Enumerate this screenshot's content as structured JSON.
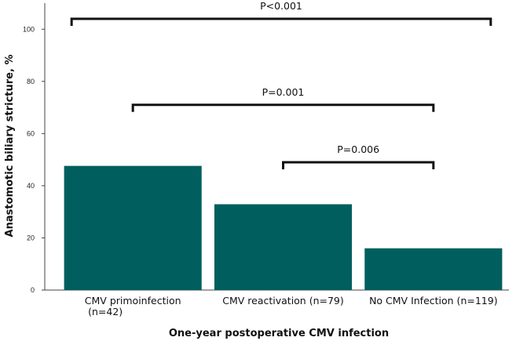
{
  "chart_data": {
    "type": "bar",
    "categories": [
      [
        "CMV primoinfection",
        "(n=42)"
      ],
      [
        "CMV reactivation (n=79)"
      ],
      [
        "No CMV Infection (n=119)"
      ]
    ],
    "values": [
      47.6,
      32.9,
      16.0
    ],
    "xlabel": "One-year postoperative CMV infection",
    "ylabel": "Anastomotic biliary stricture, %",
    "ylim": [
      0,
      110
    ],
    "yticks": [
      0,
      20,
      40,
      60,
      80,
      100
    ],
    "bar_color": "#005f5e",
    "grid": false,
    "annotations": [
      {
        "label": "P<0.001",
        "from_category": 0,
        "to_category": 2,
        "y": 104
      },
      {
        "label": "P=0.001",
        "from_category": 0,
        "to_category": 2,
        "y": 71
      },
      {
        "label": "P=0.006",
        "from_category": 1,
        "to_category": 2,
        "y": 49
      }
    ]
  }
}
